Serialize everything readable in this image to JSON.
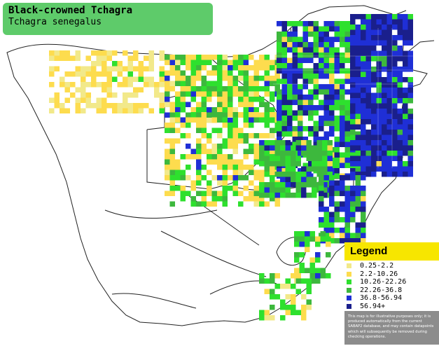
{
  "title": {
    "common_name": "Black-crowned Tchagra",
    "scientific_name": "Tchagra senegalus"
  },
  "legend": {
    "heading": "Legend",
    "items": [
      {
        "label": "0.25-2.2",
        "color": "#f2e98a"
      },
      {
        "label": "2.2-10.26",
        "color": "#fddc4e"
      },
      {
        "label": "10.26-22.26",
        "color": "#2ee02e"
      },
      {
        "label": "22.26-36.8",
        "color": "#3db83d"
      },
      {
        "label": "36.8-56.94",
        "color": "#1f2fd6"
      },
      {
        "label": "56.94+",
        "color": "#1a1f8c"
      }
    ],
    "note": "This map is for illustrative purposes only; it is produced automatically from the current SABAP2 database, and may contain datapoints which will subsequently be removed during checking operations."
  }
}
